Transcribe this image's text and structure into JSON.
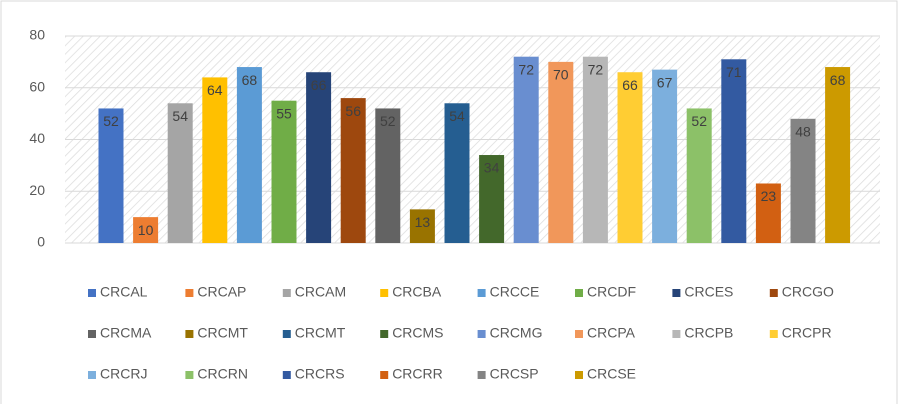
{
  "chart_data": {
    "type": "bar",
    "series": [
      {
        "name": "CRCAL",
        "color": "#4472c4",
        "values": [
          52
        ]
      },
      {
        "name": "CRCAP",
        "color": "#ed7d31",
        "values": [
          10
        ]
      },
      {
        "name": "CRCAM",
        "color": "#a5a5a5",
        "values": [
          54
        ]
      },
      {
        "name": "CRCBA",
        "color": "#ffc000",
        "values": [
          64
        ]
      },
      {
        "name": "CRCCE",
        "color": "#5b9bd5",
        "values": [
          68
        ]
      },
      {
        "name": "CRCDF",
        "color": "#70ad47",
        "values": [
          55
        ]
      },
      {
        "name": "CRCES",
        "color": "#264478",
        "values": [
          66
        ]
      },
      {
        "name": "CRCGO",
        "color": "#9e480e",
        "values": [
          56
        ]
      },
      {
        "name": "CRCMA",
        "color": "#636363",
        "values": [
          52
        ]
      },
      {
        "name": "CRCMT",
        "color": "#997300",
        "values": [
          13
        ]
      },
      {
        "name": "CRCMT",
        "color": "#255e91",
        "values": [
          54
        ]
      },
      {
        "name": "CRCMS",
        "color": "#43682b",
        "values": [
          34
        ]
      },
      {
        "name": "CRCMG",
        "color": "#698ed0",
        "values": [
          72
        ]
      },
      {
        "name": "CRCPA",
        "color": "#f1975a",
        "values": [
          70
        ]
      },
      {
        "name": "CRCPB",
        "color": "#b7b7b7",
        "values": [
          72
        ]
      },
      {
        "name": "CRCPR",
        "color": "#ffcd33",
        "values": [
          66
        ]
      },
      {
        "name": "CRCRJ",
        "color": "#7cafdd",
        "values": [
          67
        ]
      },
      {
        "name": "CRCRN",
        "color": "#8cc168",
        "values": [
          52
        ]
      },
      {
        "name": "CRCRS",
        "color": "#335aa1",
        "values": [
          71
        ]
      },
      {
        "name": "CRCRR",
        "color": "#d26012",
        "values": [
          23
        ]
      },
      {
        "name": "CRCSP",
        "color": "#848484",
        "values": [
          48
        ]
      },
      {
        "name": "CRCSE",
        "color": "#cc9a00",
        "values": [
          68
        ]
      }
    ],
    "ylim": [
      0,
      80
    ],
    "yticks": [
      0,
      20,
      40,
      60,
      80
    ],
    "grid": true,
    "legend": "bottom"
  }
}
